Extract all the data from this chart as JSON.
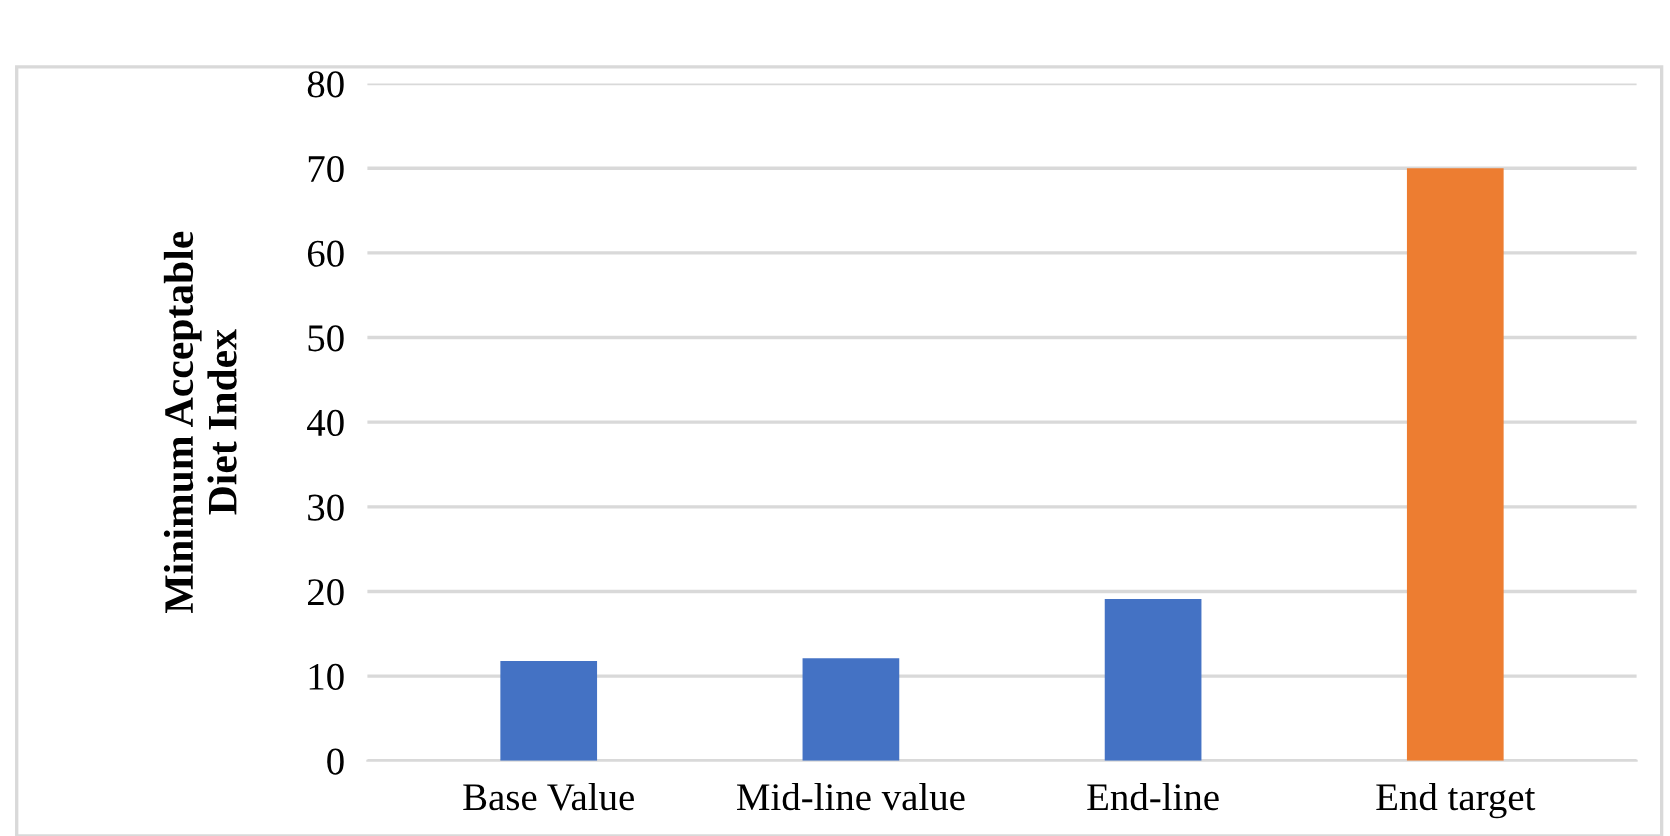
{
  "chart_data": {
    "type": "bar",
    "ylabel": "Minimum Acceptable\nDiet Index",
    "categories": [
      "Base Value",
      "Mid-line value",
      "End-line",
      "End target"
    ],
    "values": [
      11.8,
      12.1,
      19.1,
      70
    ],
    "colors": [
      "#4472c4",
      "#4472c4",
      "#4472c4",
      "#ed7d31"
    ],
    "ylim": [
      0,
      80
    ],
    "yticks": [
      0,
      10,
      20,
      30,
      40,
      50,
      60,
      70,
      80
    ],
    "grid": "y"
  }
}
